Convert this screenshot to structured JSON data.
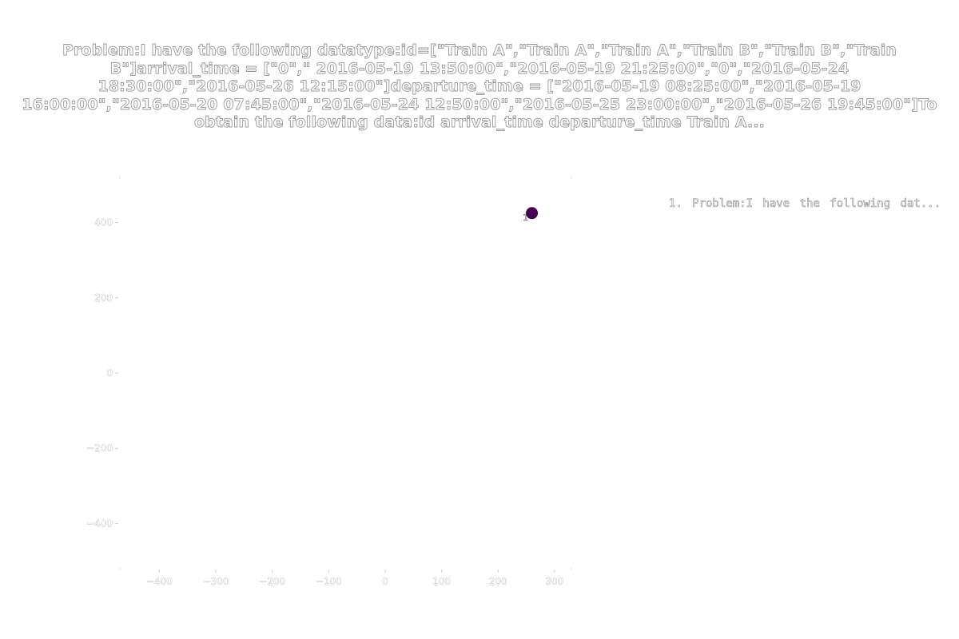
{
  "chart_data": {
    "type": "scatter",
    "title": "Problem:I have the following datatype:id=[\"Train A\",\"Train A\",\"Train A\",\"Train B\",\"Train B\",\"Train\nB\"]arrival_time = [\"0\",\" 2016-05-19 13:50:00\",\"2016-05-19 21:25:00\",\"0\",\"2016-05-24\n18:30:00\",\"2016-05-26 12:15:00\"]departure_time = [\"2016-05-19 08:25:00\",\"2016-05-19\n16:00:00\",\"2016-05-20 07:45:00\",\"2016-05-24 12:50:00\",\"2016-05-25 23:00:00\",\"2016-05-26 19:45:00\"]To\nobtain the following data:id               arrival_time                departure_time Train A...",
    "xlabel": "",
    "ylabel": "",
    "xlim": [
      -470,
      330
    ],
    "ylim": [
      -520,
      520
    ],
    "x_ticks": [
      -400,
      -300,
      -200,
      -100,
      0,
      100,
      200,
      300
    ],
    "y_ticks": [
      -400,
      -200,
      0,
      200,
      400
    ],
    "grid": false,
    "legend_position": "top-right",
    "legend": [
      "1. Problem:I have the following dat..."
    ],
    "points": [
      {
        "label": "1",
        "x": 260,
        "y": 425,
        "color": "#440154"
      }
    ]
  }
}
